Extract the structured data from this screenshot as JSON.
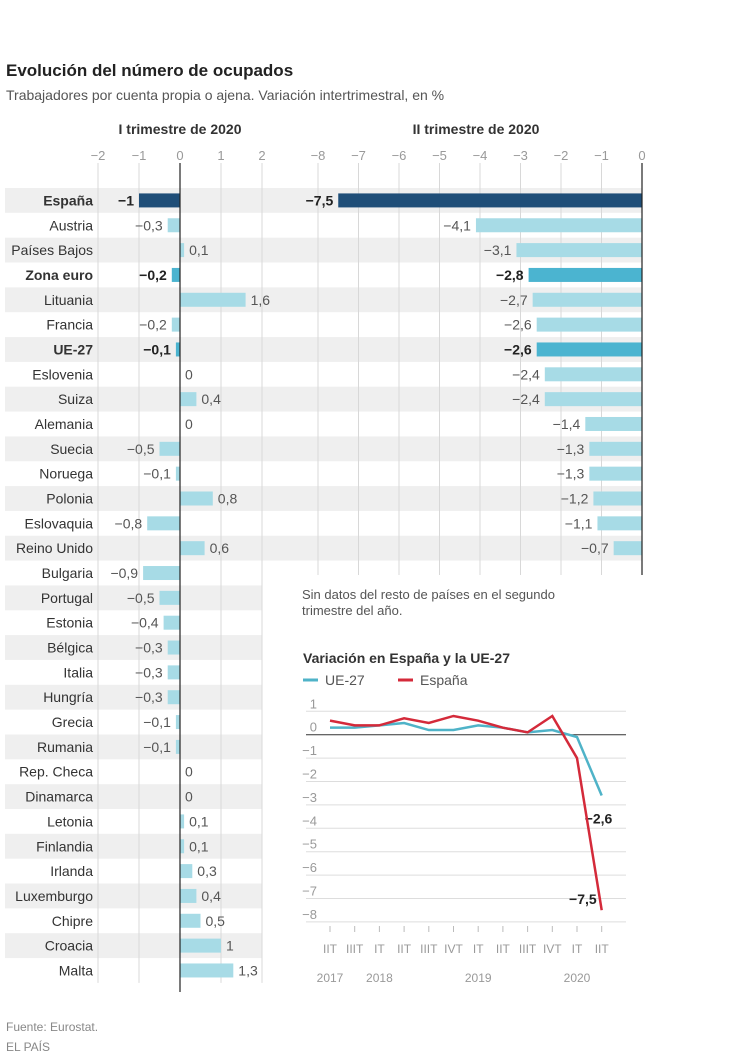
{
  "header": {
    "title": "Evolución del número de ocupados",
    "subtitle": "Trabajadores por cuenta propia o ajena. Variación intertrimestral, en %"
  },
  "note": "Sin datos del resto de países en el segundo trimestre del año.",
  "footer": {
    "source": "Fuente: Eurostat.",
    "brand": "EL PAÍS"
  },
  "colors": {
    "spain": "#1f4e78",
    "aggregate": "#4bb4d0",
    "country": "#a7dbe6",
    "ue27_line": "#4fb3c8",
    "spain_line": "#d42a3a"
  },
  "chart_data": [
    {
      "type": "bar",
      "orientation": "horizontal",
      "title": "I trimestre de 2020",
      "xlim": [
        -2,
        2
      ],
      "ticks": [
        "−2",
        "−1",
        "0",
        "1",
        "2"
      ],
      "grid": true,
      "categories": [
        "España",
        "Austria",
        "Países Bajos",
        "Zona euro",
        "Lituania",
        "Francia",
        "UE-27",
        "Eslovenia",
        "Suiza",
        "Alemania",
        "Suecia",
        "Noruega",
        "Polonia",
        "Eslovaquia",
        "Reino Unido",
        "Bulgaria",
        "Portugal",
        "Estonia",
        "Bélgica",
        "Italia",
        "Hungría",
        "Grecia",
        "Rumania",
        "Rep. Checa",
        "Dinamarca",
        "Letonia",
        "Finlandia",
        "Irlanda",
        "Luxemburgo",
        "Chipre",
        "Croacia",
        "Malta"
      ],
      "highlight": [
        "España",
        "Zona euro",
        "UE-27"
      ],
      "values": [
        -1,
        -0.3,
        0.1,
        -0.2,
        1.6,
        -0.2,
        -0.1,
        0,
        0.4,
        0,
        -0.5,
        -0.1,
        0.8,
        -0.8,
        0.6,
        -0.9,
        -0.5,
        -0.4,
        -0.3,
        -0.3,
        -0.3,
        -0.1,
        -0.1,
        0,
        0,
        0.1,
        0.1,
        0.3,
        0.4,
        0.5,
        1,
        1.3
      ],
      "labels": [
        "−1",
        "−0,3",
        "0,1",
        "−0,2",
        "1,6",
        "−0,2",
        "−0,1",
        "0",
        "0,4",
        "0",
        "−0,5",
        "−0,1",
        "0,8",
        "−0,8",
        "0,6",
        "−0,9",
        "−0,5",
        "−0,4",
        "−0,3",
        "−0,3",
        "−0,3",
        "−0,1",
        "−0,1",
        "0",
        "0",
        "0,1",
        "0,1",
        "0,3",
        "0,4",
        "0,5",
        "1",
        "1,3"
      ]
    },
    {
      "type": "bar",
      "orientation": "horizontal",
      "title": "II trimestre de 2020",
      "xlim": [
        -8,
        0
      ],
      "ticks": [
        "−8",
        "−7",
        "−6",
        "−5",
        "−4",
        "−3",
        "−2",
        "−1",
        "0"
      ],
      "grid": true,
      "categories": [
        "España",
        "Austria",
        "Países Bajos",
        "Zona euro",
        "Lituania",
        "Francia",
        "UE-27",
        "Eslovenia",
        "Suiza",
        "Alemania",
        "Suecia",
        "Noruega",
        "Polonia",
        "Eslovaquia",
        "Reino Unido"
      ],
      "values": [
        -7.5,
        -4.1,
        -3.1,
        -2.8,
        -2.7,
        -2.6,
        -2.6,
        -2.4,
        -2.4,
        -1.4,
        -1.3,
        -1.3,
        -1.2,
        -1.1,
        -0.7
      ],
      "labels": [
        "−7,5",
        "−4,1",
        "−3,1",
        "−2,8",
        "−2,7",
        "−2,6",
        "−2,6",
        "−2,4",
        "−2,4",
        "−1,4",
        "−1,3",
        "−1,3",
        "−1,2",
        "−1,1",
        "−0,7"
      ]
    },
    {
      "type": "line",
      "title": "Variación en España y la UE-27",
      "ylim": [
        -8,
        1
      ],
      "yticks": [
        "1",
        "0",
        "−1",
        "−2",
        "−3",
        "−4",
        "−5",
        "−6",
        "−7",
        "−8"
      ],
      "grid": true,
      "legend": "top-left",
      "x": [
        "IIT",
        "IIIT",
        "IT",
        "IIT",
        "IIIT",
        "IVT",
        "IT",
        "IIT",
        "IIIT",
        "IVT",
        "IT",
        "IIT"
      ],
      "years": [
        {
          "label": "2017",
          "at": 0
        },
        {
          "label": "2018",
          "at": 2
        },
        {
          "label": "2019",
          "at": 6
        },
        {
          "label": "2020",
          "at": 10
        }
      ],
      "series": [
        {
          "name": "UE-27",
          "values": [
            0.3,
            0.3,
            0.4,
            0.5,
            0.2,
            0.2,
            0.4,
            0.3,
            0.1,
            0.2,
            -0.1,
            -2.6
          ],
          "end_label": "−2,6"
        },
        {
          "name": "España",
          "values": [
            0.6,
            0.4,
            0.4,
            0.7,
            0.5,
            0.8,
            0.6,
            0.3,
            0.1,
            0.8,
            -1,
            -7.5
          ],
          "end_label": "−7,5"
        }
      ]
    }
  ]
}
